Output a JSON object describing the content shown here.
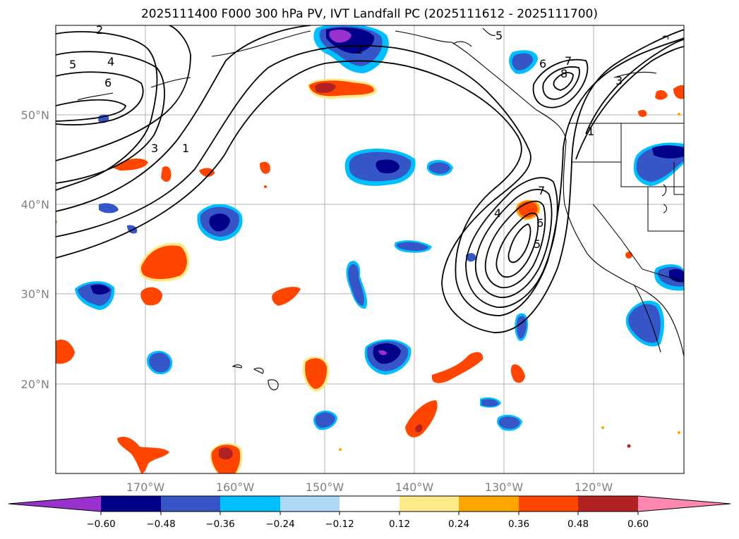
{
  "title": "2025111400 F000 300 hPa PV, IVT Landfall PC (2025111612 - 2025111700)",
  "map": {
    "lat_labels": [
      "50°N",
      "40°N",
      "30°N",
      "20°N"
    ],
    "lon_labels": [
      "170°W",
      "160°W",
      "150°W",
      "140°W",
      "130°W",
      "120°W"
    ],
    "contour_labels": [
      "2",
      "4",
      "5",
      "6",
      "3",
      "1",
      "2",
      "5",
      "6",
      "7",
      "8",
      "3",
      "1",
      "4",
      "7",
      "6",
      "5"
    ]
  },
  "colorbar": {
    "colors": [
      "#9932CC",
      "#00008B",
      "#3656C8",
      "#00BFFF",
      "#ADD8F6",
      "#FFFFFF",
      "#FFEA8A",
      "#FFA500",
      "#FF4500",
      "#B22222",
      "#FF88B0"
    ],
    "tick_labels": [
      "−0.60",
      "−0.48",
      "−0.36",
      "−0.24",
      "−0.12",
      "0.12",
      "0.24",
      "0.36",
      "0.48",
      "0.60"
    ]
  }
}
